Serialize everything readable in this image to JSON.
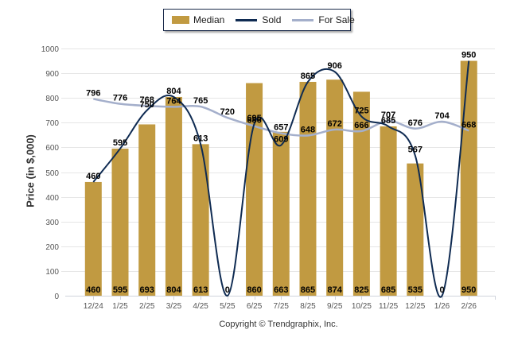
{
  "chart_data": {
    "type": "bar",
    "title": "",
    "xlabel": "",
    "ylabel": "Price (in $,000)",
    "ylim": [
      0,
      1000
    ],
    "ytick_step": 100,
    "grid": true,
    "legend_position": "top-center",
    "categories": [
      "12/24",
      "1/25",
      "2/25",
      "3/25",
      "4/25",
      "5/25",
      "6/25",
      "7/25",
      "8/25",
      "9/25",
      "10/25",
      "11/25",
      "12/25",
      "1/26",
      "2/26"
    ],
    "series": [
      {
        "name": "Median",
        "type": "bar",
        "color": "#C19A41",
        "values": [
          460,
          595,
          693,
          804,
          613,
          0,
          860,
          663,
          865,
          874,
          825,
          685,
          535,
          0,
          950
        ]
      },
      {
        "name": "Sold",
        "type": "line",
        "smooth": true,
        "color": "#0F2B52",
        "values": [
          460,
          595,
          750,
          804,
          613,
          0,
          695,
          609,
          865,
          906,
          725,
          685,
          567,
          0,
          950
        ]
      },
      {
        "name": "For Sale",
        "type": "line",
        "smooth": true,
        "color": "#A4AFCB",
        "values": [
          796,
          776,
          768,
          764,
          765,
          720,
          686,
          657,
          648,
          672,
          666,
          707,
          676,
          704,
          668
        ]
      }
    ]
  },
  "legend": {
    "items": [
      {
        "label": "Median",
        "color": "#C19A41"
      },
      {
        "label": "Sold",
        "color": "#0F2B52"
      },
      {
        "label": "For Sale",
        "color": "#A4AFCB"
      }
    ]
  },
  "footer": {
    "copyright": "Copyright © Trendgraphix, Inc."
  }
}
